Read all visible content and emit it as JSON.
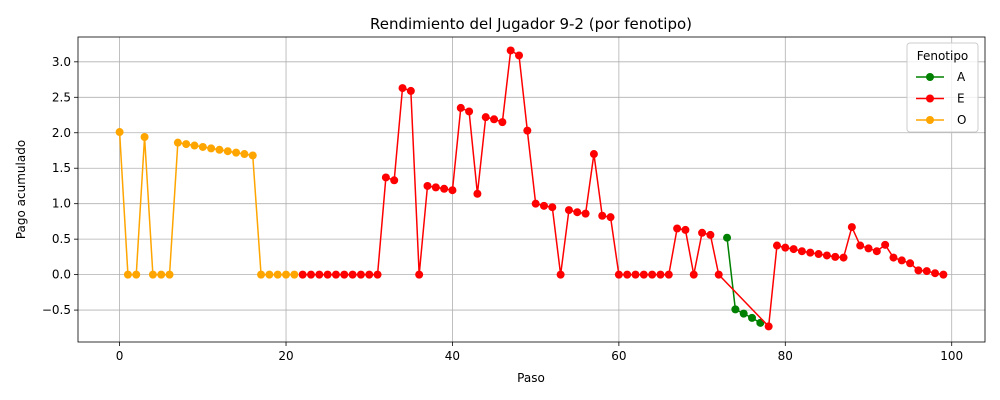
{
  "chart_data": {
    "type": "line",
    "title": "Rendimiento del Jugador 9-2 (por fenotipo)",
    "xlabel": "Paso",
    "ylabel": "Pago acumulado",
    "xlim": [
      -5,
      104
    ],
    "ylim": [
      -0.95,
      3.35
    ],
    "xticks": [
      0,
      20,
      40,
      60,
      80,
      100
    ],
    "yticks": [
      -0.5,
      0.0,
      0.5,
      1.0,
      1.5,
      2.0,
      2.5,
      3.0
    ],
    "xtick_labels": [
      "0",
      "20",
      "40",
      "60",
      "80",
      "100"
    ],
    "ytick_labels": [
      "−0.5",
      "0.0",
      "0.5",
      "1.0",
      "1.5",
      "2.0",
      "2.5",
      "3.0"
    ],
    "grid": true,
    "legend": {
      "title": "Fenotipo",
      "position": "top-right"
    },
    "series": [
      {
        "name": "A",
        "color": "#008000",
        "x": [
          73,
          74,
          75,
          76,
          77
        ],
        "y": [
          0.52,
          -0.49,
          -0.55,
          -0.61,
          -0.68
        ]
      },
      {
        "name": "E",
        "color": "#ff0000",
        "x": [
          22,
          23,
          24,
          25,
          26,
          27,
          28,
          29,
          30,
          31,
          32,
          33,
          34,
          35,
          36,
          37,
          38,
          39,
          40,
          41,
          42,
          43,
          44,
          45,
          46,
          47,
          48,
          49,
          50,
          51,
          52,
          53,
          54,
          55,
          56,
          57,
          58,
          59,
          60,
          61,
          62,
          63,
          64,
          65,
          66,
          67,
          68,
          69,
          70,
          71,
          72,
          78,
          79,
          80,
          81,
          82,
          83,
          84,
          85,
          86,
          87,
          88,
          89,
          90,
          91,
          92,
          93,
          94,
          95,
          96,
          97,
          98,
          99
        ],
        "y": [
          0,
          0,
          0,
          0,
          0,
          0,
          0,
          0,
          0,
          0,
          1.37,
          1.33,
          2.63,
          2.59,
          0,
          1.25,
          1.23,
          1.21,
          1.19,
          2.35,
          2.3,
          1.14,
          2.22,
          2.19,
          2.15,
          3.16,
          3.09,
          2.03,
          1.0,
          0.97,
          0.95,
          0,
          0.91,
          0.88,
          0.86,
          1.7,
          0.83,
          0.81,
          0,
          0,
          0,
          0,
          0,
          0,
          0,
          0.65,
          0.63,
          0,
          0.59,
          0.56,
          0,
          -0.73,
          0.41,
          0.38,
          0.36,
          0.33,
          0.31,
          0.29,
          0.27,
          0.25,
          0.24,
          0.67,
          0.41,
          0.37,
          0.33,
          0.42,
          0.24,
          0.2,
          0.16,
          0.06,
          0.05,
          0.02,
          0
        ]
      },
      {
        "name": "O",
        "color": "#ffa500",
        "x": [
          0,
          1,
          2,
          3,
          4,
          5,
          6,
          7,
          8,
          9,
          10,
          11,
          12,
          13,
          14,
          15,
          16,
          17,
          18,
          19,
          20,
          21
        ],
        "y": [
          2.01,
          0,
          0,
          1.94,
          0,
          0,
          0,
          1.86,
          1.84,
          1.82,
          1.8,
          1.78,
          1.76,
          1.74,
          1.72,
          1.7,
          1.68,
          0,
          0,
          0,
          0,
          0
        ]
      }
    ]
  }
}
